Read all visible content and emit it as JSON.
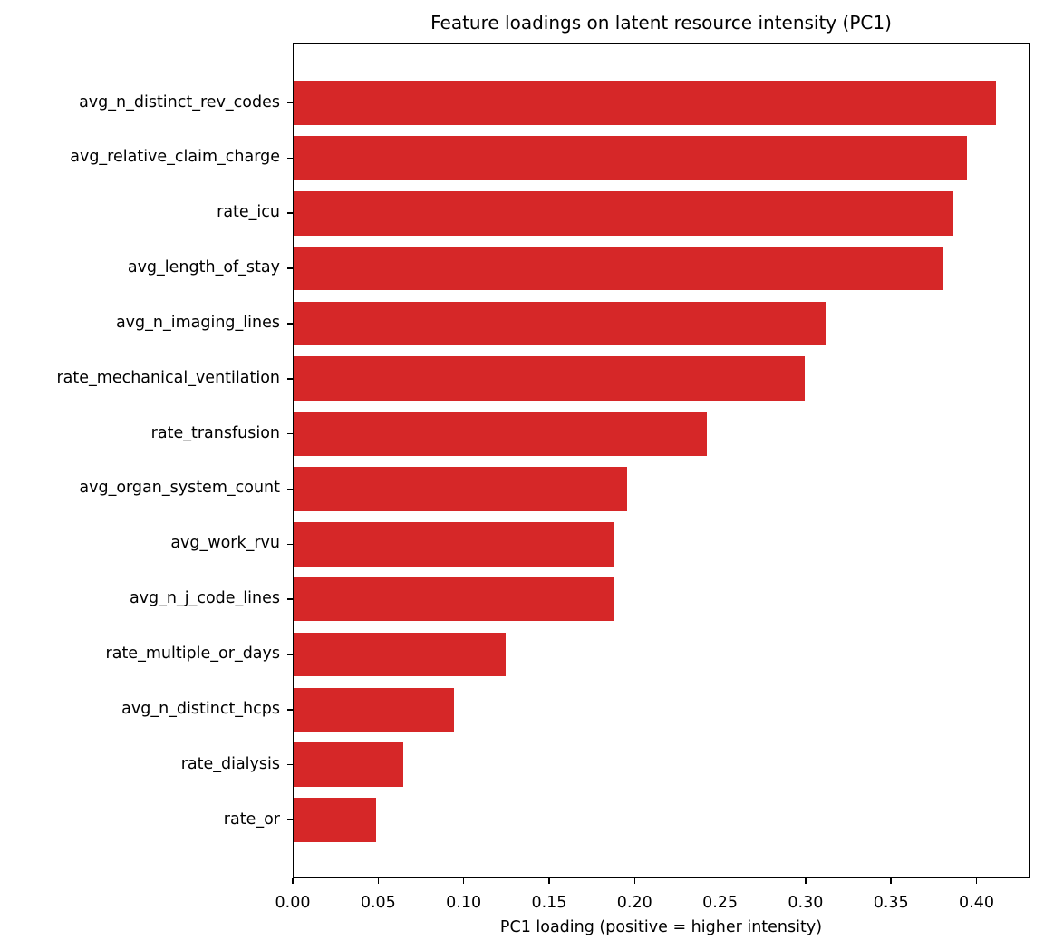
{
  "chart_data": {
    "type": "bar",
    "orientation": "horizontal",
    "title": "Feature loadings on latent resource intensity (PC1)",
    "xlabel": "PC1 loading (positive = higher intensity)",
    "ylabel": "",
    "xlim": [
      0.0,
      0.431
    ],
    "xticks": [
      0.0,
      0.05,
      0.1,
      0.15,
      0.2,
      0.25,
      0.3,
      0.35,
      0.4
    ],
    "xtick_labels": [
      "0.00",
      "0.05",
      "0.10",
      "0.15",
      "0.20",
      "0.25",
      "0.30",
      "0.35",
      "0.40"
    ],
    "grid": false,
    "legend": null,
    "bar_color": "#d62728",
    "categories": [
      "avg_n_distinct_rev_codes",
      "avg_relative_claim_charge",
      "rate_icu",
      "avg_length_of_stay",
      "avg_n_imaging_lines",
      "rate_mechanical_ventilation",
      "rate_transfusion",
      "avg_organ_system_count",
      "avg_work_rvu",
      "avg_n_j_code_lines",
      "rate_multiple_or_days",
      "avg_n_distinct_hcps",
      "rate_dialysis",
      "rate_or"
    ],
    "values": [
      0.411,
      0.394,
      0.386,
      0.38,
      0.311,
      0.299,
      0.242,
      0.195,
      0.187,
      0.187,
      0.124,
      0.094,
      0.064,
      0.048
    ]
  }
}
